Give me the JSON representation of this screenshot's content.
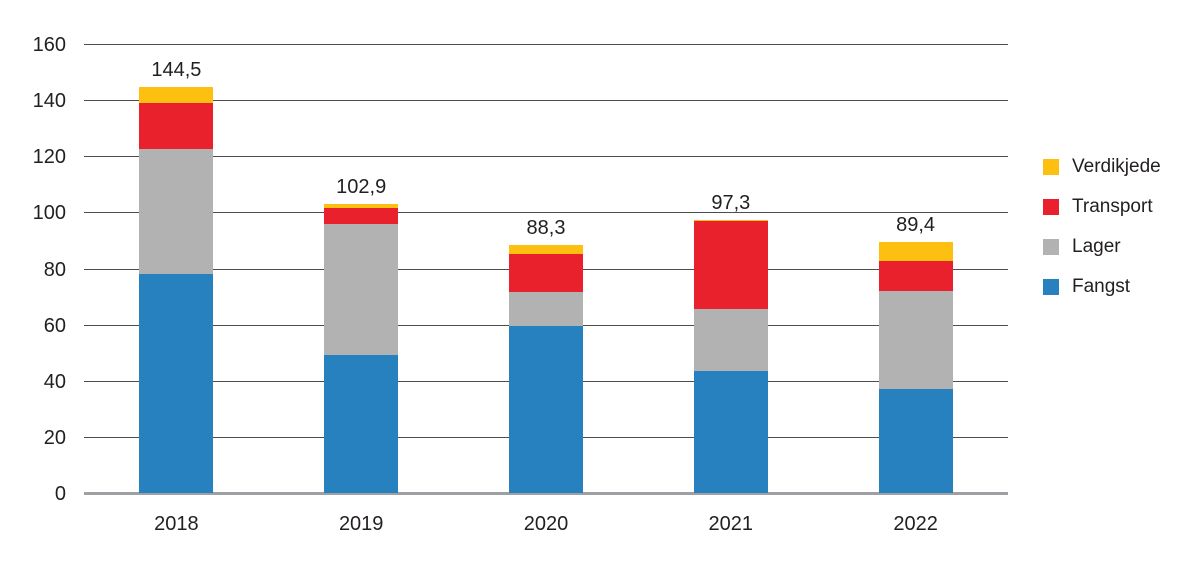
{
  "colors": {
    "background": "#ffffff",
    "text": "#231f20",
    "gridline": "#4d4d4f",
    "axis_line": "#9ea0a3"
  },
  "chart_data": {
    "type": "bar",
    "stacked": true,
    "title": "",
    "xlabel": "",
    "ylabel": "",
    "categories": [
      "2018",
      "2019",
      "2020",
      "2021",
      "2022"
    ],
    "series": [
      {
        "name": "Fangst",
        "color": "#2881bf",
        "values": [
          78,
          49,
          59.5,
          43.4,
          37
        ]
      },
      {
        "name": "Lager",
        "color": "#b2b2b2",
        "values": [
          44.5,
          46.7,
          12,
          22,
          35
        ]
      },
      {
        "name": "Transport",
        "color": "#e8212d",
        "values": [
          16.5,
          5.7,
          13.8,
          31.5,
          10.6
        ]
      },
      {
        "name": "Verdikjede",
        "color": "#fdc010",
        "values": [
          5.5,
          1.5,
          3,
          0.4,
          6.8
        ]
      }
    ],
    "totals": [
      144.5,
      102.9,
      88.3,
      97.3,
      89.4
    ],
    "totals_labels": [
      "144,5",
      "102,9",
      "88,3",
      "97,3",
      "89,4"
    ],
    "ylim": [
      0,
      160
    ],
    "ytick_step": 20,
    "ytick_labels": [
      "0",
      "20",
      "40",
      "60",
      "80",
      "100",
      "120",
      "140",
      "160"
    ],
    "grid": true,
    "legend_position": "right",
    "legend_order_top_to_bottom": [
      "Verdikjede",
      "Transport",
      "Lager",
      "Fangst"
    ]
  }
}
